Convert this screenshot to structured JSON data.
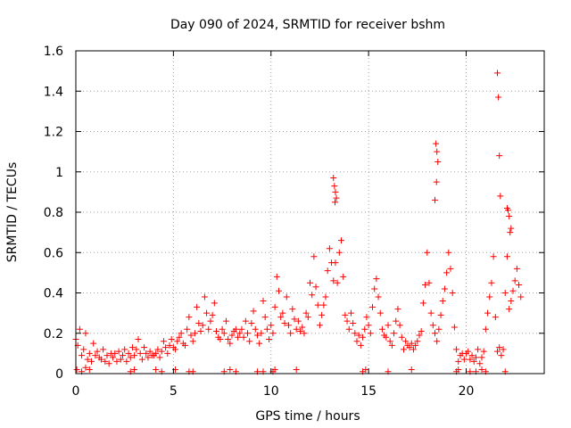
{
  "chart_data": {
    "type": "scatter",
    "title": "Day 090 of 2024, SRMTID for receiver bshm",
    "xlabel": "GPS time / hours",
    "ylabel": "SRMTID / TECUs",
    "xlim": [
      0,
      24
    ],
    "ylim": [
      0,
      1.6
    ],
    "xticks": [
      0,
      5,
      10,
      15,
      20
    ],
    "xtick_labels": [
      "0",
      "5",
      "10",
      "15",
      "20"
    ],
    "yticks": [
      0,
      0.2,
      0.4,
      0.6,
      0.8,
      1.0,
      1.2,
      1.4,
      1.6
    ],
    "ytick_labels": [
      "0",
      "0.2",
      "0.4",
      "0.6",
      "0.8",
      "1",
      "1.2",
      "1.4",
      "1.6"
    ],
    "grid": true,
    "marker": "+",
    "color": "#ff0000",
    "series": [
      {
        "name": "SRMTID",
        "x": [
          0.0,
          0.1,
          0.2,
          0.3,
          0.4,
          0.5,
          0.6,
          0.7,
          0.8,
          0.9,
          1.0,
          1.1,
          1.2,
          1.3,
          1.4,
          1.5,
          1.6,
          1.7,
          1.8,
          1.9,
          2.0,
          2.1,
          2.2,
          2.3,
          2.4,
          2.5,
          2.6,
          2.7,
          2.8,
          2.9,
          3.0,
          3.1,
          3.2,
          3.3,
          3.4,
          3.5,
          3.6,
          3.7,
          3.8,
          3.9,
          4.0,
          4.1,
          4.2,
          4.3,
          4.4,
          4.5,
          4.6,
          4.7,
          4.8,
          4.9,
          5.0,
          5.1,
          5.2,
          5.3,
          5.4,
          5.5,
          5.6,
          5.7,
          5.8,
          5.9,
          6.0,
          6.1,
          6.2,
          6.3,
          6.4,
          6.5,
          6.6,
          6.7,
          6.8,
          6.9,
          7.0,
          7.1,
          7.2,
          7.3,
          7.4,
          7.5,
          7.6,
          7.7,
          7.8,
          7.9,
          8.0,
          8.1,
          8.2,
          8.3,
          8.4,
          8.5,
          8.6,
          8.7,
          8.8,
          8.9,
          9.0,
          9.1,
          9.2,
          9.3,
          9.4,
          9.5,
          9.6,
          9.7,
          9.8,
          9.9,
          10.0,
          10.1,
          10.2,
          10.3,
          10.4,
          10.5,
          10.6,
          10.7,
          10.8,
          10.9,
          11.0,
          11.1,
          11.2,
          11.3,
          11.4,
          11.5,
          11.6,
          11.7,
          11.8,
          11.9,
          12.0,
          12.1,
          12.2,
          12.3,
          12.4,
          12.5,
          12.6,
          12.7,
          12.8,
          12.9,
          13.0,
          13.1,
          13.2,
          13.3,
          13.4,
          13.5,
          13.6,
          13.7,
          13.8,
          13.9,
          14.0,
          14.1,
          14.2,
          14.3,
          14.4,
          14.5,
          14.6,
          14.7,
          14.8,
          14.9,
          15.0,
          15.1,
          15.2,
          15.3,
          15.4,
          15.5,
          15.6,
          15.7,
          15.8,
          15.9,
          16.0,
          16.1,
          16.2,
          16.3,
          16.4,
          16.5,
          16.6,
          16.7,
          16.8,
          16.9,
          17.0,
          17.1,
          17.2,
          17.3,
          17.4,
          17.5,
          17.6,
          17.7,
          17.8,
          17.9,
          18.0,
          18.1,
          18.2,
          18.3,
          18.4,
          18.5,
          18.6,
          18.7,
          18.8,
          18.9,
          19.0,
          19.1,
          19.2,
          19.3,
          19.4,
          19.5,
          19.6,
          19.7,
          19.8,
          19.9,
          20.0,
          20.1,
          20.2,
          20.3,
          20.4,
          20.5,
          20.6,
          20.7,
          20.8,
          20.9,
          21.0,
          21.1,
          21.2,
          21.3,
          21.4,
          21.5,
          21.6,
          21.7,
          21.8,
          21.9,
          22.0,
          22.1,
          22.2,
          22.3,
          22.4,
          22.5,
          22.6,
          22.7,
          22.8,
          13.2,
          13.25,
          13.3,
          13.35,
          13.28,
          18.45,
          18.5,
          18.55,
          18.4,
          18.48,
          21.6,
          21.65,
          21.7,
          21.75,
          22.1,
          22.15,
          22.2,
          22.25,
          22.3,
          0.05,
          0.3,
          0.5,
          0.7,
          2.8,
          3.0,
          4.1,
          4.4,
          5.1,
          5.8,
          6.0,
          7.6,
          7.9,
          8.2,
          9.3,
          9.6,
          10.1,
          10.2,
          11.3,
          14.7,
          14.85,
          16.0,
          17.2,
          19.5,
          19.6,
          20.2,
          20.5,
          20.8,
          21.0,
          22.0
        ],
        "y": [
          0.17,
          0.14,
          0.22,
          0.09,
          0.12,
          0.2,
          0.07,
          0.1,
          0.06,
          0.15,
          0.09,
          0.11,
          0.08,
          0.07,
          0.12,
          0.06,
          0.09,
          0.05,
          0.1,
          0.08,
          0.1,
          0.06,
          0.11,
          0.07,
          0.09,
          0.12,
          0.06,
          0.1,
          0.08,
          0.13,
          0.09,
          0.12,
          0.17,
          0.1,
          0.07,
          0.13,
          0.1,
          0.08,
          0.11,
          0.09,
          0.09,
          0.1,
          0.12,
          0.08,
          0.11,
          0.16,
          0.13,
          0.1,
          0.14,
          0.17,
          0.13,
          0.12,
          0.16,
          0.18,
          0.2,
          0.15,
          0.14,
          0.22,
          0.28,
          0.19,
          0.16,
          0.2,
          0.33,
          0.25,
          0.21,
          0.24,
          0.38,
          0.3,
          0.22,
          0.26,
          0.29,
          0.35,
          0.21,
          0.18,
          0.17,
          0.22,
          0.2,
          0.26,
          0.17,
          0.15,
          0.19,
          0.21,
          0.22,
          0.18,
          0.2,
          0.22,
          0.18,
          0.26,
          0.2,
          0.16,
          0.25,
          0.31,
          0.22,
          0.19,
          0.15,
          0.2,
          0.36,
          0.28,
          0.22,
          0.17,
          0.24,
          0.2,
          0.33,
          0.48,
          0.41,
          0.28,
          0.3,
          0.25,
          0.38,
          0.24,
          0.2,
          0.32,
          0.27,
          0.22,
          0.26,
          0.21,
          0.23,
          0.2,
          0.3,
          0.28,
          0.45,
          0.39,
          0.58,
          0.43,
          0.34,
          0.24,
          0.29,
          0.34,
          0.38,
          0.51,
          0.62,
          0.55,
          0.46,
          0.55,
          0.45,
          0.6,
          0.66,
          0.48,
          0.29,
          0.26,
          0.22,
          0.3,
          0.25,
          0.2,
          0.16,
          0.19,
          0.14,
          0.18,
          0.22,
          0.28,
          0.24,
          0.2,
          0.33,
          0.42,
          0.47,
          0.38,
          0.3,
          0.22,
          0.19,
          0.18,
          0.24,
          0.16,
          0.14,
          0.2,
          0.26,
          0.32,
          0.24,
          0.18,
          0.12,
          0.16,
          0.14,
          0.13,
          0.15,
          0.12,
          0.14,
          0.16,
          0.19,
          0.21,
          0.35,
          0.44,
          0.6,
          0.45,
          0.3,
          0.24,
          0.2,
          0.16,
          0.22,
          0.29,
          0.36,
          0.42,
          0.5,
          0.6,
          0.52,
          0.4,
          0.23,
          0.12,
          0.06,
          0.09,
          0.1,
          0.07,
          0.1,
          0.11,
          0.07,
          0.09,
          0.06,
          0.08,
          0.12,
          0.05,
          0.08,
          0.11,
          0.22,
          0.3,
          0.38,
          0.45,
          0.58,
          0.28,
          0.11,
          0.13,
          0.09,
          0.12,
          0.4,
          0.58,
          0.32,
          0.36,
          0.41,
          0.46,
          0.52,
          0.44,
          0.38,
          0.97,
          0.93,
          0.9,
          0.87,
          0.85,
          1.14,
          1.1,
          1.05,
          0.86,
          0.95,
          1.49,
          1.37,
          1.08,
          0.88,
          0.82,
          0.81,
          0.78,
          0.7,
          0.72,
          0.02,
          0.01,
          0.03,
          0.02,
          0.01,
          0.02,
          0.02,
          0.01,
          0.02,
          0.01,
          0.01,
          0.01,
          0.02,
          0.01,
          0.01,
          0.01,
          0.01,
          0.02,
          0.02,
          0.01,
          0.02,
          0.01,
          0.02,
          0.01,
          0.02,
          0.01,
          0.01,
          0.02,
          0.01,
          0.01
        ]
      }
    ]
  }
}
